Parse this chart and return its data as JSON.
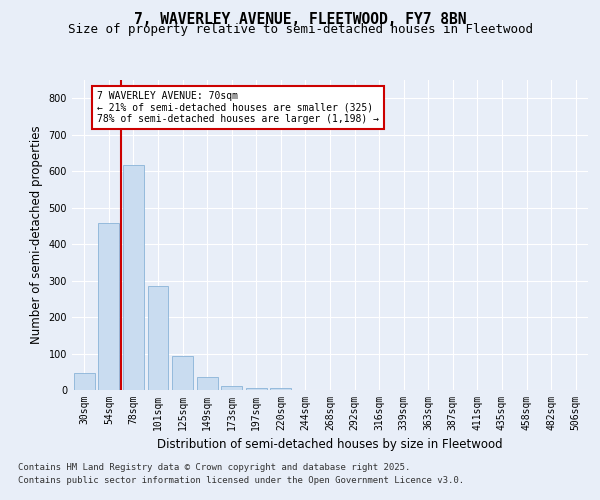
{
  "title_line1": "7, WAVERLEY AVENUE, FLEETWOOD, FY7 8BN",
  "title_line2": "Size of property relative to semi-detached houses in Fleetwood",
  "xlabel": "Distribution of semi-detached houses by size in Fleetwood",
  "ylabel": "Number of semi-detached properties",
  "bar_categories": [
    "30sqm",
    "54sqm",
    "78sqm",
    "101sqm",
    "125sqm",
    "149sqm",
    "173sqm",
    "197sqm",
    "220sqm",
    "244sqm",
    "268sqm",
    "292sqm",
    "316sqm",
    "339sqm",
    "363sqm",
    "387sqm",
    "411sqm",
    "435sqm",
    "458sqm",
    "482sqm",
    "506sqm"
  ],
  "bar_values": [
    46,
    457,
    617,
    286,
    94,
    36,
    12,
    5,
    5,
    0,
    0,
    0,
    0,
    0,
    0,
    0,
    0,
    0,
    0,
    0,
    0
  ],
  "bar_color": "#c9dcf0",
  "bar_edgecolor": "#8ab4d8",
  "property_sqm": 70,
  "property_label": "7 WAVERLEY AVENUE: 70sqm",
  "smaller_pct": 21,
  "smaller_count": 325,
  "larger_pct": 78,
  "larger_count": 1198,
  "annotation_box_facecolor": "#ffffff",
  "annotation_box_edgecolor": "#cc0000",
  "red_line_color": "#cc0000",
  "ylim": [
    0,
    850
  ],
  "yticks": [
    0,
    100,
    200,
    300,
    400,
    500,
    600,
    700,
    800
  ],
  "footer_line1": "Contains HM Land Registry data © Crown copyright and database right 2025.",
  "footer_line2": "Contains public sector information licensed under the Open Government Licence v3.0.",
  "bg_color": "#e8eef8",
  "plot_bg_color": "#e8eef8",
  "grid_color": "#ffffff",
  "title_fontsize": 10.5,
  "subtitle_fontsize": 9,
  "axis_label_fontsize": 8.5,
  "tick_fontsize": 7,
  "annotation_fontsize": 7,
  "footer_fontsize": 6.5
}
